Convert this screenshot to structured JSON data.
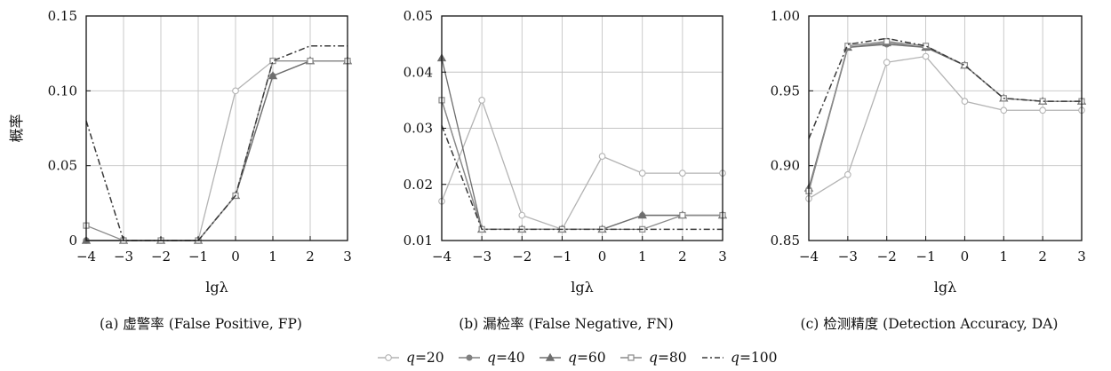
{
  "chart_data": [
    {
      "type": "line",
      "caption": "(a) 虚警率 (False Positive, FP)",
      "xlabel": "lgλ",
      "ylabel": "概率",
      "x": [
        -4,
        -3,
        -2,
        -1,
        0,
        1,
        2,
        3
      ],
      "xlim": [
        -4,
        3
      ],
      "ylim": [
        0,
        0.15
      ],
      "yticks": [
        0,
        0.05,
        0.1,
        0.15
      ],
      "ytick_labels": [
        "0",
        "0.05",
        "0.10",
        "0.15"
      ],
      "grid": true,
      "series": [
        {
          "name": "q=20",
          "values": [
            0,
            0,
            0,
            0,
            0.1,
            0.12,
            0.12,
            0.12
          ]
        },
        {
          "name": "q=40",
          "values": [
            0,
            0,
            0,
            0,
            0.03,
            0.11,
            0.12,
            0.12
          ]
        },
        {
          "name": "q=60",
          "values": [
            0,
            0,
            0,
            0,
            0.03,
            0.11,
            0.12,
            0.12
          ]
        },
        {
          "name": "q=80",
          "values": [
            0.01,
            0,
            0,
            0,
            0.03,
            0.12,
            0.12,
            0.12
          ]
        },
        {
          "name": "q=100",
          "values": [
            0.08,
            0,
            0,
            0,
            0.03,
            0.12,
            0.13,
            0.13
          ]
        }
      ]
    },
    {
      "type": "line",
      "caption": "(b) 漏检率 (False Negative, FN)",
      "xlabel": "lgλ",
      "ylabel": "",
      "x": [
        -4,
        -3,
        -2,
        -1,
        0,
        1,
        2,
        3
      ],
      "xlim": [
        -4,
        3
      ],
      "ylim": [
        0.01,
        0.05
      ],
      "yticks": [
        0.01,
        0.02,
        0.03,
        0.04,
        0.05
      ],
      "ytick_labels": [
        "0.01",
        "0.02",
        "0.03",
        "0.04",
        "0.05"
      ],
      "grid": true,
      "series": [
        {
          "name": "q=20",
          "values": [
            0.017,
            0.035,
            0.0145,
            0.012,
            0.025,
            0.022,
            0.022,
            0.022
          ]
        },
        {
          "name": "q=40",
          "values": [
            0.035,
            0.012,
            0.012,
            0.012,
            0.012,
            0.0145,
            0.0145,
            0.0145
          ]
        },
        {
          "name": "q=60",
          "values": [
            0.0425,
            0.012,
            0.012,
            0.012,
            0.012,
            0.0145,
            0.0145,
            0.0145
          ]
        },
        {
          "name": "q=80",
          "values": [
            0.035,
            0.012,
            0.012,
            0.012,
            0.012,
            0.012,
            0.0145,
            0.0145
          ]
        },
        {
          "name": "q=100",
          "values": [
            0.0305,
            0.012,
            0.012,
            0.012,
            0.012,
            0.012,
            0.012,
            0.012
          ]
        }
      ]
    },
    {
      "type": "line",
      "caption": "(c) 检测精度 (Detection Accuracy, DA)",
      "xlabel": "lgλ",
      "ylabel": "",
      "x": [
        -4,
        -3,
        -2,
        -1,
        0,
        1,
        2,
        3
      ],
      "xlim": [
        -4,
        3
      ],
      "ylim": [
        0.85,
        1.0
      ],
      "yticks": [
        0.85,
        0.9,
        0.95,
        1.0
      ],
      "ytick_labels": [
        "0.85",
        "0.90",
        "0.95",
        "1.00"
      ],
      "grid": true,
      "series": [
        {
          "name": "q=20",
          "values": [
            0.878,
            0.894,
            0.969,
            0.973,
            0.943,
            0.937,
            0.937,
            0.937
          ]
        },
        {
          "name": "q=40",
          "values": [
            0.883,
            0.979,
            0.981,
            0.979,
            0.967,
            0.945,
            0.943,
            0.943
          ]
        },
        {
          "name": "q=60",
          "values": [
            0.885,
            0.979,
            0.982,
            0.979,
            0.967,
            0.945,
            0.943,
            0.943
          ]
        },
        {
          "name": "q=80",
          "values": [
            0.883,
            0.98,
            0.983,
            0.98,
            0.967,
            0.945,
            0.943,
            0.943
          ]
        },
        {
          "name": "q=100",
          "values": [
            0.918,
            0.981,
            0.985,
            0.98,
            0.967,
            0.945,
            0.943,
            0.943
          ]
        }
      ]
    }
  ],
  "legend": {
    "placement": "bottom-center",
    "entries": [
      {
        "var": "q",
        "label": "=20",
        "marker": "circle",
        "color": "#b3b3b3",
        "dash": "solid"
      },
      {
        "var": "q",
        "label": "=40",
        "marker": "dot",
        "color": "#808080",
        "dash": "solid"
      },
      {
        "var": "q",
        "label": "=60",
        "marker": "triangle",
        "color": "#6e6e6e",
        "dash": "solid"
      },
      {
        "var": "q",
        "label": "=80",
        "marker": "square",
        "color": "#8a8a8a",
        "dash": "solid"
      },
      {
        "var": "q",
        "label": "=100",
        "marker": "none",
        "color": "#3a3a3a",
        "dash": "dashdot"
      }
    ]
  }
}
